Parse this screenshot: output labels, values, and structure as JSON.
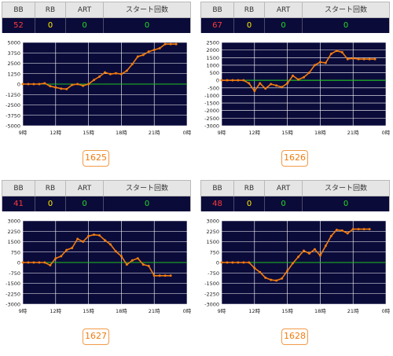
{
  "headers": {
    "bb": "BB",
    "rb": "RB",
    "art": "ART",
    "start": "スタート回数"
  },
  "colors": {
    "bb": "#ff3b3b",
    "rb": "#ffee00",
    "art": "#22dd22",
    "start": "#22dd22",
    "line": "#f07b0f",
    "zero": "#1ec21e",
    "plot_bg": "#0b0b3a"
  },
  "panels": [
    {
      "bb": "52",
      "rb": "0",
      "art": "0",
      "start": "0",
      "button": "1625",
      "chart_data": {
        "type": "line",
        "ylim": [
          -5000,
          5000
        ],
        "yticks": [
          "5000",
          "3750",
          "2500",
          "1250",
          "0",
          "-1250",
          "-2500",
          "-3750",
          "-5000"
        ],
        "xticks": [
          "9時",
          "12時",
          "15時",
          "18時",
          "21時",
          "0時"
        ],
        "x": [
          0,
          0.5,
          1,
          1.5,
          2,
          2.5,
          3,
          3.5,
          4,
          4.5,
          5,
          5.5,
          6,
          6.5,
          7,
          7.5,
          8,
          8.5,
          9,
          9.5,
          10,
          10.5,
          11,
          11.5,
          12,
          12.5,
          13,
          13.5,
          14
        ],
        "y": [
          0,
          0,
          0,
          0,
          100,
          -250,
          -400,
          -550,
          -600,
          -100,
          0,
          -200,
          0,
          500,
          900,
          1400,
          1200,
          1300,
          1200,
          1600,
          2400,
          3300,
          3500,
          3900,
          4100,
          4300,
          4800,
          4800,
          4800
        ]
      }
    },
    {
      "bb": "67",
      "rb": "0",
      "art": "0",
      "start": "0",
      "button": "1626",
      "chart_data": {
        "type": "line",
        "ylim": [
          -3000,
          2500
        ],
        "yticks": [
          "2500",
          "2000",
          "1500",
          "1000",
          "500",
          "0",
          "-500",
          "-1000",
          "-1500",
          "-2000",
          "-2500",
          "-3000"
        ],
        "xticks": [
          "9時",
          "12時",
          "15時",
          "18時",
          "21時",
          "0時"
        ],
        "x": [
          0,
          0.5,
          1,
          1.5,
          2,
          2.5,
          3,
          3.5,
          4,
          4.5,
          5,
          5.5,
          6,
          6.5,
          7,
          7.5,
          8,
          8.5,
          9,
          9.5,
          10,
          10.5,
          11,
          11.5,
          12,
          12.5,
          13,
          13.5,
          14
        ],
        "y": [
          0,
          0,
          0,
          0,
          0,
          -200,
          -700,
          -200,
          -550,
          -250,
          -350,
          -450,
          -200,
          300,
          50,
          200,
          500,
          1000,
          1200,
          1150,
          1750,
          1950,
          1850,
          1400,
          1450,
          1400,
          1400,
          1400,
          1400
        ]
      }
    },
    {
      "bb": "41",
      "rb": "0",
      "art": "0",
      "start": "0",
      "button": "1627",
      "chart_data": {
        "type": "line",
        "ylim": [
          -3000,
          3000
        ],
        "yticks": [
          "3000",
          "2250",
          "1500",
          "750",
          "0",
          "-750",
          "-1500",
          "-2250",
          "-3000"
        ],
        "xticks": [
          "9時",
          "12時",
          "15時",
          "18時",
          "21時",
          "0時"
        ],
        "x": [
          0,
          0.5,
          1,
          1.5,
          2,
          2.5,
          3,
          3.5,
          4,
          4.5,
          5,
          5.5,
          6,
          6.5,
          7,
          7.5,
          8,
          8.5,
          9,
          9.5,
          10,
          10.5,
          11,
          11.5,
          12,
          12.5,
          13,
          13.5
        ],
        "y": [
          0,
          0,
          0,
          0,
          0,
          -200,
          300,
          450,
          900,
          1050,
          1700,
          1500,
          1900,
          2000,
          1950,
          1600,
          1300,
          800,
          450,
          -150,
          150,
          300,
          -150,
          -250,
          -950,
          -950,
          -950,
          -950
        ]
      }
    },
    {
      "bb": "48",
      "rb": "0",
      "art": "0",
      "start": "0",
      "button": "1628",
      "chart_data": {
        "type": "line",
        "ylim": [
          -3000,
          3000
        ],
        "yticks": [
          "3000",
          "2250",
          "1500",
          "750",
          "0",
          "-750",
          "-1500",
          "-2250",
          "-3000"
        ],
        "xticks": [
          "9時",
          "12時",
          "15時",
          "18時",
          "21時",
          "0時"
        ],
        "x": [
          0,
          0.5,
          1,
          1.5,
          2,
          2.5,
          3,
          3.5,
          4,
          4.5,
          5,
          5.5,
          6,
          6.5,
          7,
          7.5,
          8,
          8.5,
          9,
          9.5,
          10,
          10.5,
          11,
          11.5,
          12,
          12.5,
          13,
          13.5
        ],
        "y": [
          0,
          0,
          0,
          0,
          0,
          0,
          -400,
          -700,
          -1100,
          -1250,
          -1300,
          -1150,
          -600,
          -50,
          400,
          850,
          650,
          950,
          500,
          1200,
          1900,
          2350,
          2300,
          2100,
          2400,
          2400,
          2400,
          2400
        ]
      }
    }
  ]
}
